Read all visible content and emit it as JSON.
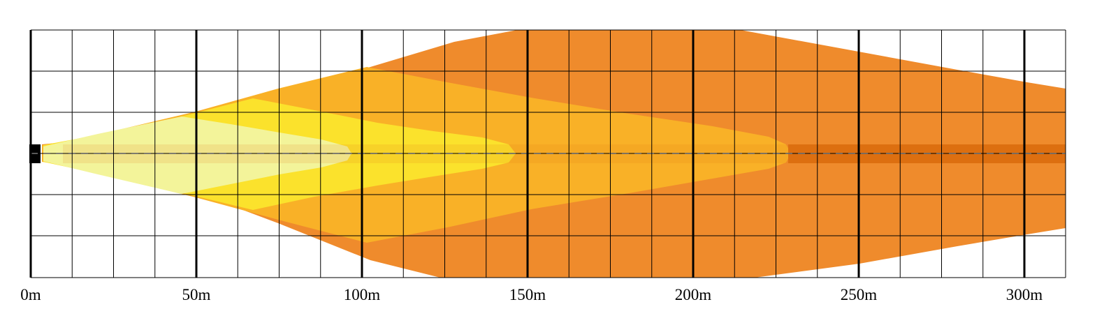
{
  "diagram": {
    "type": "light-beam-distance-pattern",
    "x_axis": {
      "ticks": [
        "0m",
        "50m",
        "100m",
        "150m",
        "200m",
        "250m",
        "300m"
      ],
      "range_m": [
        0,
        312
      ]
    },
    "colors": {
      "zone_far": "#ef8b2c",
      "zone_mid_far": "#f9b127",
      "zone_mid": "#fbe22c",
      "zone_near": "#f3f49a",
      "centerline_band": "#dd6f10",
      "grid_major": "#000000",
      "grid_minor": "#000000",
      "background": "#ffffff"
    },
    "zones": [
      {
        "name": "zone-far",
        "reach_m": 312
      },
      {
        "name": "zone-mid-far",
        "reach_m": 229
      },
      {
        "name": "zone-mid",
        "reach_m": 147
      },
      {
        "name": "zone-near",
        "reach_m": 97
      }
    ]
  }
}
